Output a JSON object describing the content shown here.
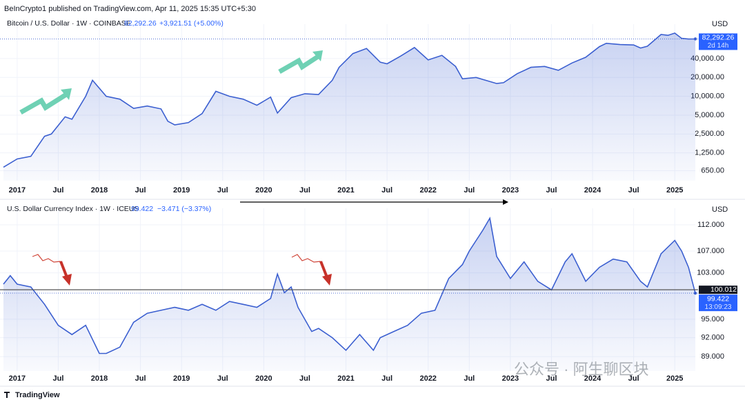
{
  "header": {
    "publisher": "BeInCrypto1 published on TradingView.com, Apr 11, 2025 15:35 UTC+5:30"
  },
  "footer": {
    "brand": "TradingView",
    "watermark": "公众号 · 阿生聊区块"
  },
  "chart_data": [
    {
      "type": "line",
      "title": "Bitcoin / U.S. Dollar · 1W · COINBASE",
      "price_label": "82,292.26",
      "change": "+3,921.51 (+5.00%)",
      "countdown": "2d 14h",
      "axis_label": "USD",
      "color": "#3b5fd0",
      "log_scale": true,
      "grid": true,
      "x": [
        "2016-11",
        "2017-01",
        "2017-03",
        "2017-05",
        "2017-06",
        "2017-08",
        "2017-09",
        "2017-11",
        "2017-12",
        "2018-02",
        "2018-04",
        "2018-06",
        "2018-08",
        "2018-10",
        "2018-11",
        "2018-12",
        "2019-02",
        "2019-04",
        "2019-06",
        "2019-08",
        "2019-10",
        "2019-12",
        "2020-02",
        "2020-03",
        "2020-05",
        "2020-07",
        "2020-09",
        "2020-11",
        "2020-12",
        "2021-02",
        "2021-04",
        "2021-06",
        "2021-07",
        "2021-09",
        "2021-11",
        "2022-01",
        "2022-03",
        "2022-05",
        "2022-06",
        "2022-08",
        "2022-11",
        "2022-12",
        "2023-02",
        "2023-04",
        "2023-06",
        "2023-08",
        "2023-10",
        "2023-12",
        "2024-02",
        "2024-03",
        "2024-05",
        "2024-07",
        "2024-08",
        "2024-09",
        "2024-11",
        "2024-12",
        "2025-01",
        "2025-02",
        "2025-03",
        "2025-04"
      ],
      "values": [
        740,
        1000,
        1100,
        2300,
        2500,
        4700,
        4300,
        10000,
        18000,
        10000,
        9000,
        6400,
        7000,
        6300,
        4000,
        3500,
        3800,
        5300,
        12000,
        10000,
        9000,
        7200,
        9700,
        5400,
        9500,
        11000,
        10700,
        18000,
        29000,
        48000,
        58000,
        35000,
        33000,
        44000,
        60000,
        38000,
        45000,
        30000,
        19000,
        20000,
        16000,
        16500,
        23000,
        29000,
        30000,
        26000,
        34000,
        42000,
        62000,
        70000,
        67000,
        66000,
        59000,
        63000,
        97000,
        94000,
        102000,
        84000,
        82000,
        82292.26
      ],
      "xlim": [
        "2016-11",
        "2025-04"
      ],
      "xticks": [
        {
          "value": "2017-01",
          "label": "2017"
        },
        {
          "value": "2017-07",
          "label": "Jul"
        },
        {
          "value": "2018-01",
          "label": "2018"
        },
        {
          "value": "2018-07",
          "label": "Jul"
        },
        {
          "value": "2019-01",
          "label": "2019"
        },
        {
          "value": "2019-07",
          "label": "Jul"
        },
        {
          "value": "2020-01",
          "label": "2020"
        },
        {
          "value": "2020-07",
          "label": "Jul"
        },
        {
          "value": "2021-01",
          "label": "2021"
        },
        {
          "value": "2021-07",
          "label": "Jul"
        },
        {
          "value": "2022-01",
          "label": "2022"
        },
        {
          "value": "2022-07",
          "label": "Jul"
        },
        {
          "value": "2023-01",
          "label": "2023"
        },
        {
          "value": "2023-07",
          "label": "Jul"
        },
        {
          "value": "2024-01",
          "label": "2024"
        },
        {
          "value": "2024-07",
          "label": "Jul"
        },
        {
          "value": "2025-01",
          "label": "2025"
        }
      ],
      "ylim": [
        450,
        110000
      ],
      "yticks": [
        {
          "value": 650,
          "label": "650.00"
        },
        {
          "value": 1250,
          "label": "1,250.00"
        },
        {
          "value": 2500,
          "label": "2,500.00"
        },
        {
          "value": 5000,
          "label": "5,000.00"
        },
        {
          "value": 10000,
          "label": "10,000.00"
        },
        {
          "value": 20000,
          "label": "20,000.00"
        },
        {
          "value": 40000,
          "label": "40,000.00"
        }
      ]
    },
    {
      "type": "line",
      "title": "U.S. Dollar Currency Index · 1W · ICEUS",
      "change": "−3.471 (−3.37%)",
      "countdown": "13:09:23",
      "axis_label": "USD",
      "color": "#3b5fd0",
      "log_scale": true,
      "grid": true,
      "reference_line": 100.012,
      "x": [
        "2016-11",
        "2016-12",
        "2017-01",
        "2017-03",
        "2017-05",
        "2017-07",
        "2017-09",
        "2017-11",
        "2018-01",
        "2018-02",
        "2018-04",
        "2018-06",
        "2018-08",
        "2018-10",
        "2018-12",
        "2019-02",
        "2019-04",
        "2019-06",
        "2019-08",
        "2019-10",
        "2019-12",
        "2020-02",
        "2020-03",
        "2020-04",
        "2020-05",
        "2020-06",
        "2020-08",
        "2020-09",
        "2020-11",
        "2021-01",
        "2021-03",
        "2021-05",
        "2021-06",
        "2021-08",
        "2021-10",
        "2021-12",
        "2022-02",
        "2022-04",
        "2022-06",
        "2022-07",
        "2022-09",
        "2022-10",
        "2022-11",
        "2023-01",
        "2023-03",
        "2023-05",
        "2023-07",
        "2023-09",
        "2023-10",
        "2023-12",
        "2024-02",
        "2024-04",
        "2024-06",
        "2024-08",
        "2024-09",
        "2024-11",
        "2025-01",
        "2025-02",
        "2025-03",
        "2025-04"
      ],
      "values": [
        101,
        102.5,
        101,
        100.5,
        97.5,
        94,
        92.5,
        94,
        89.5,
        89.5,
        90.5,
        94.5,
        96,
        96.5,
        97,
        96.5,
        97.5,
        96.5,
        98,
        97.5,
        97,
        98.5,
        102.8,
        99.5,
        100.5,
        97,
        93,
        93.5,
        92,
        90,
        92.5,
        90,
        92,
        93,
        94,
        96,
        96.5,
        102,
        104.5,
        107,
        111,
        113.3,
        106,
        102,
        105,
        101.5,
        100,
        105,
        106.5,
        101.5,
        104,
        105.5,
        105,
        101.5,
        100.5,
        106.5,
        109,
        107,
        104,
        99.422
      ],
      "xlim": [
        "2016-11",
        "2025-04"
      ],
      "xticks": [
        {
          "value": "2017-01",
          "label": "2017"
        },
        {
          "value": "2017-07",
          "label": "Jul"
        },
        {
          "value": "2018-01",
          "label": "2018"
        },
        {
          "value": "2018-07",
          "label": "Jul"
        },
        {
          "value": "2019-01",
          "label": "2019"
        },
        {
          "value": "2019-07",
          "label": "Jul"
        },
        {
          "value": "2020-01",
          "label": "2020"
        },
        {
          "value": "2020-07",
          "label": "Jul"
        },
        {
          "value": "2021-01",
          "label": "2021"
        },
        {
          "value": "2021-07",
          "label": "Jul"
        },
        {
          "value": "2022-01",
          "label": "2022"
        },
        {
          "value": "2022-07",
          "label": "Jul"
        },
        {
          "value": "2023-01",
          "label": "2023"
        },
        {
          "value": "2023-07",
          "label": "Jul"
        },
        {
          "value": "2024-01",
          "label": "2024"
        },
        {
          "value": "2024-07",
          "label": "Jul"
        },
        {
          "value": "2025-01",
          "label": "2025"
        }
      ],
      "ylim": [
        86.8,
        113.9
      ],
      "yticks": [
        {
          "value": 89,
          "label": "89.000"
        },
        {
          "value": 92,
          "label": "92.000"
        },
        {
          "value": 95,
          "label": "95.000"
        },
        {
          "value": 103,
          "label": "103.000"
        },
        {
          "value": 107,
          "label": "107.000"
        },
        {
          "value": 112,
          "label": "112.000"
        }
      ]
    }
  ]
}
